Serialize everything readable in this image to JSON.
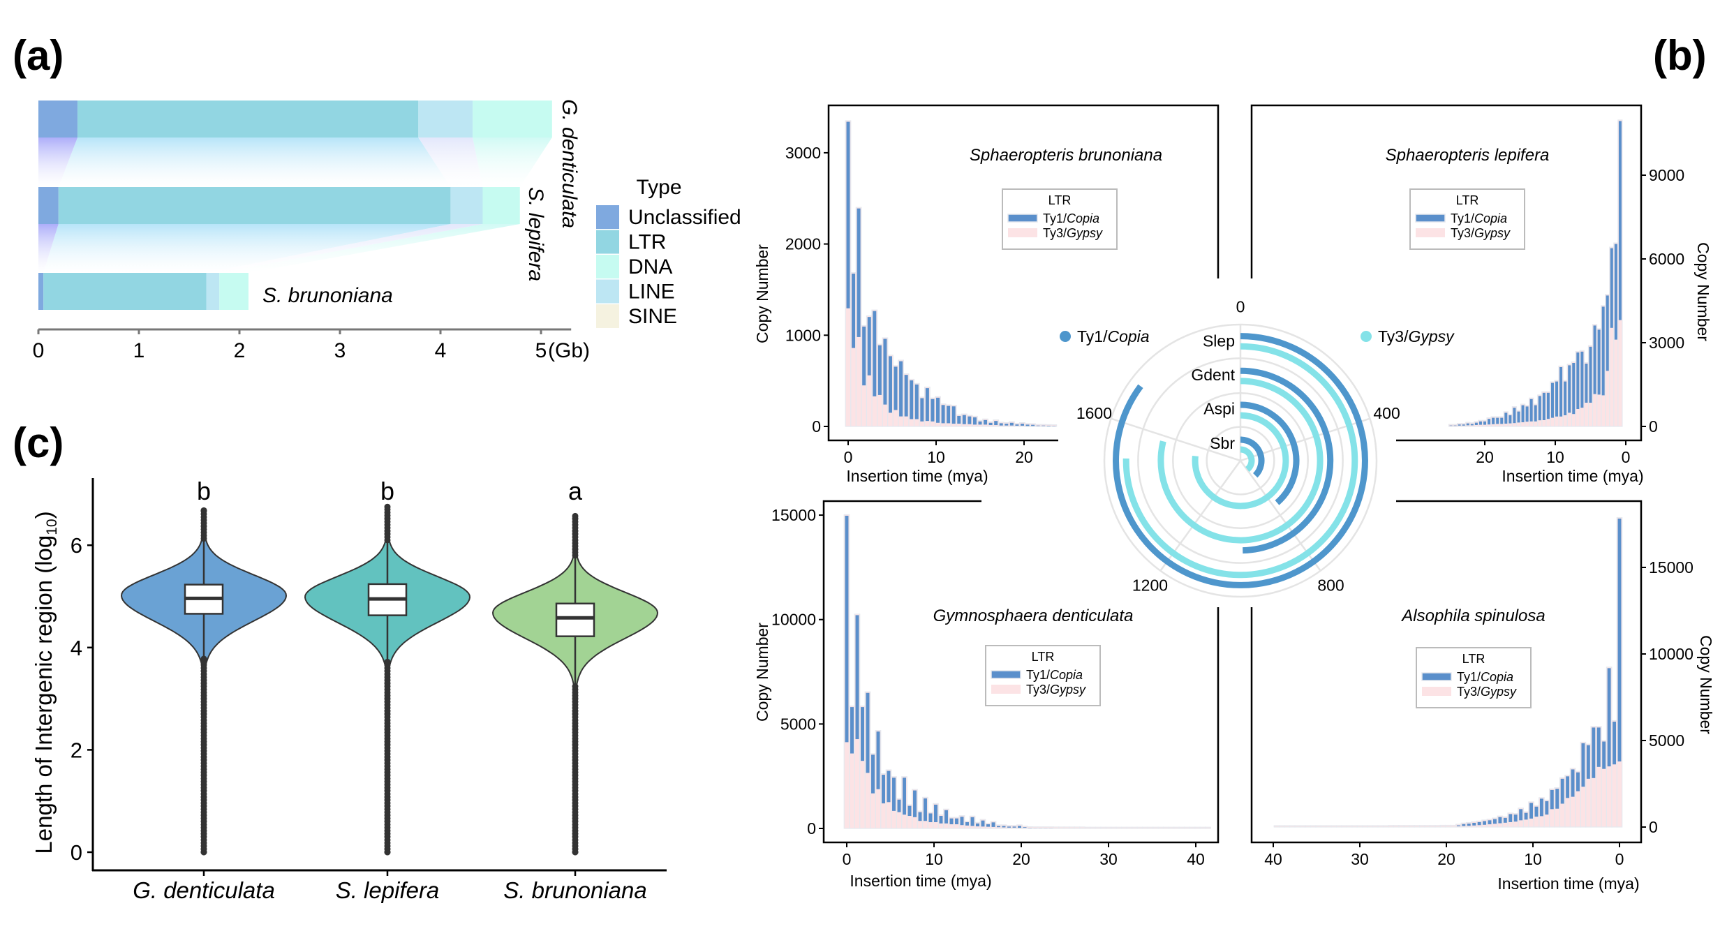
{
  "panel_labels": {
    "a": "(a)",
    "b": "(b)",
    "c": "(c)"
  },
  "chart_data": [
    {
      "panel": "a",
      "type": "bar",
      "orientation": "horizontal",
      "stacked": true,
      "categories": [
        "G. denticulata",
        "S. lepifera",
        "S. brunoniana"
      ],
      "series": [
        {
          "name": "Unclassified",
          "values": [
            0.39,
            0.2,
            0.05
          ],
          "color": "#7fa9df",
          "ribbon": "#a9aaf9"
        },
        {
          "name": "LTR",
          "values": [
            3.39,
            3.9,
            1.62
          ],
          "color": "#92d6e2",
          "ribbon": "#b3e3f8"
        },
        {
          "name": "LINE",
          "values": [
            0.54,
            0.32,
            0.13
          ],
          "color": "#bde6f3",
          "ribbon": "#e2e6fb"
        },
        {
          "name": "DNA",
          "values": [
            0.79,
            0.37,
            0.29
          ],
          "color": "#c6fbf1",
          "ribbon": "#cffaf4"
        },
        {
          "name": "SINE",
          "values": [
            0,
            0,
            0
          ],
          "color": "#f5f2e0",
          "ribbon": "#f5f2e0"
        }
      ],
      "legend": {
        "title": "Type",
        "order": [
          "Unclassified",
          "LTR",
          "DNA",
          "LINE",
          "SINE"
        ]
      },
      "xticks": [
        "0",
        "1",
        "2",
        "3",
        "4",
        "5"
      ],
      "xunit": "(Gb)",
      "xlim": [
        0,
        5.3
      ]
    },
    {
      "panel": "b-center",
      "type": "radial_bar",
      "categories": [
        "Slep",
        "Gdent",
        "Aspi",
        "Sbr"
      ],
      "series": [
        {
          "name": "Ty1/Copia",
          "values": [
            1704,
            992,
            772,
            750
          ],
          "color": "#4e96cc"
        },
        {
          "name": "Ty3/Gypsy",
          "values": [
            1506,
            1578,
            1532,
            789
          ],
          "color": "#84e2e8"
        }
      ],
      "axis_ticks": [
        "0",
        "400",
        "800",
        "1200",
        "1600"
      ],
      "axis_max": 2000,
      "grid": true
    },
    {
      "panel": "b-top-left",
      "type": "bar",
      "stacked": true,
      "title": "Sphaeropteris brunoniana",
      "xlabel": "Insertion time (mya)",
      "ylabel": "Copy Number",
      "x_start": 0,
      "bin_width": 0.6,
      "xticks": [
        0,
        10,
        20
      ],
      "yticks": [
        0,
        1000,
        2000,
        3000
      ],
      "legend": {
        "title": "LTR",
        "placement": "top-right"
      },
      "series": [
        {
          "name": "Ty1/Copia",
          "color": "#5a8fcb",
          "values": [
            2045,
            815,
            1410,
            645,
            640,
            935,
            545,
            720,
            620,
            475,
            605,
            455,
            425,
            380,
            255,
            360,
            245,
            275,
            200,
            190,
            190,
            85,
            100,
            85,
            80,
            35,
            50,
            25,
            45,
            25,
            20,
            30,
            14,
            22,
            15,
            13,
            5,
            5,
            5,
            3
          ]
        },
        {
          "name": "Ty3/Gypsy",
          "color": "#fce3e5",
          "values": [
            1295,
            860,
            980,
            450,
            560,
            330,
            345,
            240,
            150,
            180,
            110,
            110,
            80,
            80,
            55,
            60,
            55,
            40,
            35,
            35,
            30,
            30,
            25,
            25,
            20,
            20,
            20,
            15,
            15,
            10,
            10,
            10,
            8,
            8,
            5,
            5,
            5,
            5,
            3,
            3
          ]
        }
      ]
    },
    {
      "panel": "b-top-right",
      "type": "bar",
      "stacked": true,
      "title": "Sphaeropteris lepifera",
      "xlabel": "Insertion time (mya)",
      "ylabel": "Copy Number",
      "x_start": 0.8,
      "bin_width": 0.6,
      "x_reversed": true,
      "xticks": [
        20,
        10,
        0
      ],
      "yticks": [
        0,
        3000,
        6000,
        9000
      ],
      "legend": {
        "title": "LTR",
        "placement": "top-center"
      },
      "series": [
        {
          "name": "Ty1/Copia",
          "color": "#5a8fcb",
          "values": [
            7130,
            3425,
            2855,
            2700,
            3175,
            2325,
            2455,
            2005,
            1400,
            2010,
            2025,
            1830,
            1700,
            1210,
            1770,
            1255,
            1250,
            935,
            980,
            870,
            580,
            800,
            545,
            610,
            395,
            550,
            290,
            390,
            220,
            220,
            230,
            200,
            120,
            120,
            85,
            50,
            70,
            40,
            40,
            15,
            15
          ]
        },
        {
          "name": "Ty3/Gypsy",
          "color": "#fce3e5",
          "values": [
            3810,
            3110,
            3530,
            1990,
            1115,
            1140,
            1160,
            850,
            850,
            670,
            625,
            445,
            490,
            400,
            355,
            355,
            310,
            270,
            225,
            220,
            180,
            180,
            170,
            150,
            140,
            120,
            110,
            100,
            90,
            90,
            80,
            70,
            60,
            60,
            50,
            40,
            40,
            30,
            30,
            20,
            20
          ]
        }
      ]
    },
    {
      "panel": "b-bottom-left",
      "type": "bar",
      "stacked": true,
      "title": "Gymnosphaera denticulata",
      "xlabel": "Insertion time (mya)",
      "ylabel": "Copy Number",
      "x_start": 0,
      "bin_width": 0.6,
      "xticks": [
        0,
        10,
        20,
        30,
        40
      ],
      "yticks": [
        0,
        5000,
        10000,
        15000
      ],
      "legend": {
        "title": "LTR",
        "placement": "center"
      },
      "series": [
        {
          "name": "Ty1/Copia",
          "color": "#5a8fcb",
          "values": [
            10840,
            2220,
            5935,
            2575,
            3830,
            1850,
            2760,
            1370,
            1495,
            1590,
            600,
            1770,
            480,
            1280,
            420,
            1080,
            420,
            840,
            360,
            635,
            280,
            280,
            400,
            160,
            420,
            140,
            290,
            120,
            220,
            60,
            70,
            50,
            50,
            90,
            30,
            10,
            5,
            5,
            5,
            5,
            0,
            0,
            0,
            0,
            0,
            0,
            0,
            0,
            0,
            0,
            0,
            0,
            0,
            0,
            0,
            0,
            0,
            0,
            0,
            0,
            0,
            0,
            0,
            0,
            0,
            0,
            0,
            0,
            0,
            0
          ]
        },
        {
          "name": "Ty3/Gypsy",
          "color": "#fce3e5",
          "values": [
            4130,
            3590,
            4275,
            3235,
            2660,
            1680,
            1880,
            1200,
            1260,
            840,
            780,
            660,
            600,
            540,
            360,
            360,
            300,
            300,
            240,
            240,
            200,
            200,
            160,
            140,
            120,
            100,
            90,
            80,
            70,
            60,
            50,
            40,
            40,
            30,
            30,
            20,
            20,
            20,
            20,
            20,
            20,
            20,
            20,
            20,
            20,
            20,
            10,
            10,
            10,
            10,
            10,
            10,
            10,
            10,
            10,
            10,
            10,
            10,
            10,
            10,
            10,
            10,
            10,
            10,
            10,
            10,
            10,
            10,
            10,
            10
          ]
        }
      ]
    },
    {
      "panel": "b-bottom-right",
      "type": "bar",
      "stacked": true,
      "title": "Alsophila spinulosa",
      "xlabel": "Insertion time (mya)",
      "ylabel": "Copy Number",
      "x_start": 0,
      "bin_width": 0.6,
      "x_reversed": true,
      "xticks": [
        40,
        30,
        20,
        10,
        0
      ],
      "yticks": [
        0,
        5000,
        10000,
        15000
      ],
      "legend": {
        "title": "LTR",
        "placement": "center"
      },
      "series": [
        {
          "name": "Ty1/Copia",
          "color": "#5a8fcb",
          "values": [
            14030,
            2470,
            5675,
            1580,
            2275,
            2920,
            1940,
            2510,
            1090,
            1580,
            1250,
            1440,
            1150,
            1105,
            775,
            1010,
            580,
            905,
            390,
            645,
            405,
            465,
            280,
            355,
            270,
            230,
            215,
            175,
            155,
            130,
            110,
            50,
            0,
            0,
            0,
            0,
            0,
            0,
            0,
            0,
            0,
            0,
            0,
            0,
            0,
            0,
            0,
            0,
            0,
            0,
            0,
            0,
            0,
            0,
            0,
            0,
            0,
            0,
            0,
            0,
            0,
            0,
            0,
            0,
            0,
            0,
            0
          ]
        },
        {
          "name": "Ty3/Gypsy",
          "color": "#fce3e5",
          "values": [
            3790,
            3620,
            3505,
            3360,
            3475,
            2830,
            2790,
            2330,
            2070,
            1750,
            1680,
            1350,
            1060,
            1035,
            720,
            630,
            600,
            490,
            430,
            390,
            315,
            285,
            250,
            220,
            190,
            160,
            130,
            110,
            90,
            70,
            60,
            50,
            40,
            40,
            40,
            30,
            30,
            30,
            30,
            30,
            30,
            30,
            30,
            30,
            30,
            20,
            20,
            20,
            20,
            20,
            20,
            20,
            20,
            20,
            20,
            20,
            20,
            20,
            20,
            20,
            20,
            20,
            20,
            20,
            20,
            20,
            20
          ]
        }
      ]
    },
    {
      "panel": "c",
      "type": "violin",
      "ylabel": {
        "main": "Length of Intergenic region (log",
        "sub": "10",
        "end": ")"
      },
      "yticks": [
        0,
        2,
        4,
        6
      ],
      "ylim": [
        -0.25,
        7.3
      ],
      "categories": [
        "G. denticulata",
        "S. lepifera",
        "S. brunoniana"
      ],
      "groups": [
        {
          "name": "G. denticulata",
          "color": "#6aa2d4",
          "letter": "b",
          "min": 0,
          "whisker_low": 3.8,
          "q1": 4.66,
          "median": 4.96,
          "q3": 5.23,
          "whisker_high": 6.13,
          "max": 6.68,
          "mode": 5.02
        },
        {
          "name": "S. lepifera",
          "color": "#62c2bf",
          "letter": "b",
          "min": 0,
          "whisker_low": 3.75,
          "q1": 4.63,
          "median": 4.95,
          "q3": 5.24,
          "whisker_high": 6.1,
          "max": 6.75,
          "mode": 4.99
        },
        {
          "name": "S. brunoniana",
          "color": "#a2d394",
          "letter": "a",
          "min": 0,
          "whisker_low": 3.29,
          "q1": 4.22,
          "median": 4.58,
          "q3": 4.86,
          "whisker_high": 5.8,
          "max": 6.57,
          "mode": 4.68
        }
      ]
    }
  ]
}
